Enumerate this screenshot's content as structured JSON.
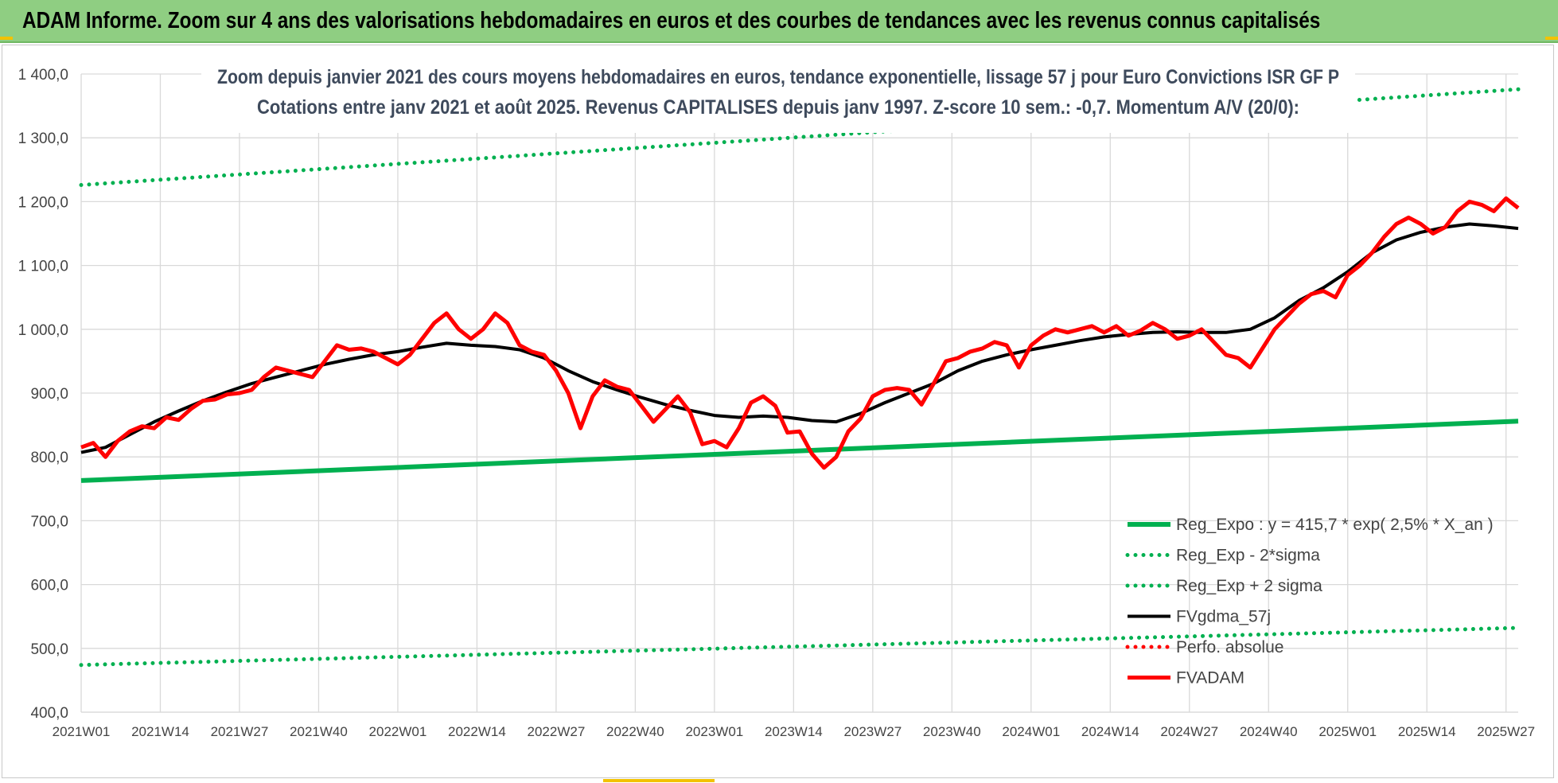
{
  "header": {
    "title": "ADAM Informe. Zoom sur 4 ans des valorisations hebdomadaires en euros et des courbes de tendances avec les revenus connus capitalisés"
  },
  "colors": {
    "header_bg": "#8fce82",
    "reg_expo": "#00b050",
    "fvgdma": "#000000",
    "fvadam": "#ff0000",
    "perfo": "#ff0000"
  },
  "chart_data": {
    "type": "line",
    "title_lines": [
      "Zoom depuis janvier 2021 des cours moyens hebdomadaires en euros, tendance exponentielle, lissage 57 j pour Euro Convictions ISR GF P",
      "Cotations entre janv 2021 et août 2025. Revenus CAPITALISES depuis janv 1997. Z-score 10 sem.: -0,7. Momentum A/V (20/0):"
    ],
    "xlabel": "",
    "ylabel": "",
    "ylim": [
      400,
      1400
    ],
    "yticks": [
      "400,0",
      "500,0",
      "600,0",
      "700,0",
      "800,0",
      "900,0",
      "1 000,0",
      "1 100,0",
      "1 200,0",
      "1 300,0",
      "1 400,0"
    ],
    "xticks": [
      "2021W01",
      "2021W14",
      "2021W27",
      "2021W40",
      "2022W01",
      "2022W14",
      "2022W27",
      "2022W40",
      "2023W01",
      "2023W14",
      "2023W27",
      "2023W40",
      "2024W01",
      "2024W14",
      "2024W27",
      "2024W40",
      "2025W01",
      "2025W14",
      "2025W27"
    ],
    "n_weeks": 237,
    "grid": true,
    "legend_position": "bottom-right",
    "series": [
      {
        "name": "Reg_Expo : y = 415,7 * exp( 2,5% *  X_an )",
        "style": "solid",
        "color": "#00b050",
        "points": [
          [
            0,
            763
          ],
          [
            236,
            856
          ]
        ]
      },
      {
        "name": "Reg_Exp - 2*sigma",
        "style": "dotted",
        "color": "#00b050",
        "points": [
          [
            0,
            474
          ],
          [
            236,
            532
          ]
        ]
      },
      {
        "name": "Reg_Exp + 2 sigma",
        "style": "dotted",
        "color": "#00b050",
        "points": [
          [
            0,
            1226
          ],
          [
            236,
            1376
          ]
        ]
      },
      {
        "name": "FVgdma_57j",
        "style": "solid",
        "color": "#000000",
        "points": [
          [
            0,
            807
          ],
          [
            4,
            815
          ],
          [
            8,
            835
          ],
          [
            12,
            855
          ],
          [
            16,
            872
          ],
          [
            20,
            888
          ],
          [
            24,
            902
          ],
          [
            28,
            915
          ],
          [
            32,
            925
          ],
          [
            36,
            935
          ],
          [
            40,
            945
          ],
          [
            44,
            953
          ],
          [
            48,
            960
          ],
          [
            52,
            965
          ],
          [
            56,
            972
          ],
          [
            60,
            978
          ],
          [
            64,
            975
          ],
          [
            68,
            973
          ],
          [
            72,
            968
          ],
          [
            76,
            955
          ],
          [
            80,
            935
          ],
          [
            84,
            918
          ],
          [
            88,
            905
          ],
          [
            92,
            893
          ],
          [
            96,
            882
          ],
          [
            100,
            873
          ],
          [
            104,
            865
          ],
          [
            108,
            862
          ],
          [
            112,
            864
          ],
          [
            116,
            862
          ],
          [
            120,
            857
          ],
          [
            124,
            855
          ],
          [
            128,
            868
          ],
          [
            132,
            885
          ],
          [
            136,
            900
          ],
          [
            140,
            915
          ],
          [
            144,
            935
          ],
          [
            148,
            950
          ],
          [
            152,
            960
          ],
          [
            156,
            968
          ],
          [
            160,
            975
          ],
          [
            164,
            982
          ],
          [
            168,
            988
          ],
          [
            172,
            992
          ],
          [
            176,
            995
          ],
          [
            180,
            996
          ],
          [
            184,
            995
          ],
          [
            188,
            995
          ],
          [
            192,
            1000
          ],
          [
            196,
            1018
          ],
          [
            200,
            1045
          ],
          [
            204,
            1065
          ],
          [
            208,
            1090
          ],
          [
            212,
            1120
          ],
          [
            216,
            1140
          ],
          [
            220,
            1152
          ],
          [
            224,
            1160
          ],
          [
            228,
            1165
          ],
          [
            232,
            1162
          ],
          [
            236,
            1158
          ]
        ]
      },
      {
        "name": "Perfo. absolue",
        "style": "dotted",
        "color": "#ff0000",
        "points": []
      },
      {
        "name": "FVADAM",
        "style": "solid",
        "color": "#ff0000",
        "points": [
          [
            0,
            815
          ],
          [
            2,
            822
          ],
          [
            4,
            800
          ],
          [
            6,
            825
          ],
          [
            8,
            840
          ],
          [
            10,
            848
          ],
          [
            12,
            845
          ],
          [
            14,
            862
          ],
          [
            16,
            858
          ],
          [
            18,
            875
          ],
          [
            20,
            888
          ],
          [
            22,
            890
          ],
          [
            24,
            898
          ],
          [
            26,
            900
          ],
          [
            28,
            905
          ],
          [
            30,
            925
          ],
          [
            32,
            940
          ],
          [
            34,
            935
          ],
          [
            36,
            930
          ],
          [
            38,
            925
          ],
          [
            40,
            950
          ],
          [
            42,
            975
          ],
          [
            44,
            968
          ],
          [
            46,
            970
          ],
          [
            48,
            965
          ],
          [
            50,
            955
          ],
          [
            52,
            945
          ],
          [
            54,
            960
          ],
          [
            56,
            985
          ],
          [
            58,
            1010
          ],
          [
            60,
            1025
          ],
          [
            62,
            1000
          ],
          [
            64,
            985
          ],
          [
            66,
            1000
          ],
          [
            68,
            1025
          ],
          [
            70,
            1010
          ],
          [
            72,
            975
          ],
          [
            74,
            965
          ],
          [
            76,
            960
          ],
          [
            78,
            935
          ],
          [
            80,
            900
          ],
          [
            82,
            845
          ],
          [
            84,
            895
          ],
          [
            86,
            920
          ],
          [
            88,
            910
          ],
          [
            90,
            905
          ],
          [
            92,
            880
          ],
          [
            94,
            855
          ],
          [
            96,
            875
          ],
          [
            98,
            895
          ],
          [
            100,
            870
          ],
          [
            102,
            820
          ],
          [
            104,
            825
          ],
          [
            106,
            815
          ],
          [
            108,
            845
          ],
          [
            110,
            885
          ],
          [
            112,
            895
          ],
          [
            114,
            880
          ],
          [
            116,
            838
          ],
          [
            118,
            840
          ],
          [
            120,
            805
          ],
          [
            122,
            783
          ],
          [
            124,
            800
          ],
          [
            126,
            840
          ],
          [
            128,
            860
          ],
          [
            130,
            895
          ],
          [
            132,
            905
          ],
          [
            134,
            908
          ],
          [
            136,
            905
          ],
          [
            138,
            882
          ],
          [
            140,
            915
          ],
          [
            142,
            950
          ],
          [
            144,
            955
          ],
          [
            146,
            965
          ],
          [
            148,
            970
          ],
          [
            150,
            980
          ],
          [
            152,
            975
          ],
          [
            154,
            940
          ],
          [
            156,
            975
          ],
          [
            158,
            990
          ],
          [
            160,
            1000
          ],
          [
            162,
            995
          ],
          [
            164,
            1000
          ],
          [
            166,
            1005
          ],
          [
            168,
            995
          ],
          [
            170,
            1005
          ],
          [
            172,
            990
          ],
          [
            174,
            998
          ],
          [
            176,
            1010
          ],
          [
            178,
            1000
          ],
          [
            180,
            985
          ],
          [
            182,
            990
          ],
          [
            184,
            1000
          ],
          [
            186,
            980
          ],
          [
            188,
            960
          ],
          [
            190,
            955
          ],
          [
            192,
            940
          ],
          [
            194,
            970
          ],
          [
            196,
            1000
          ],
          [
            198,
            1020
          ],
          [
            200,
            1040
          ],
          [
            202,
            1055
          ],
          [
            204,
            1060
          ],
          [
            206,
            1050
          ],
          [
            208,
            1085
          ],
          [
            210,
            1100
          ],
          [
            212,
            1120
          ],
          [
            214,
            1145
          ],
          [
            216,
            1165
          ],
          [
            218,
            1175
          ],
          [
            220,
            1165
          ],
          [
            222,
            1150
          ],
          [
            224,
            1160
          ],
          [
            226,
            1185
          ],
          [
            228,
            1200
          ],
          [
            230,
            1195
          ],
          [
            232,
            1185
          ],
          [
            234,
            1205
          ],
          [
            236,
            1190
          ]
        ]
      }
    ]
  }
}
